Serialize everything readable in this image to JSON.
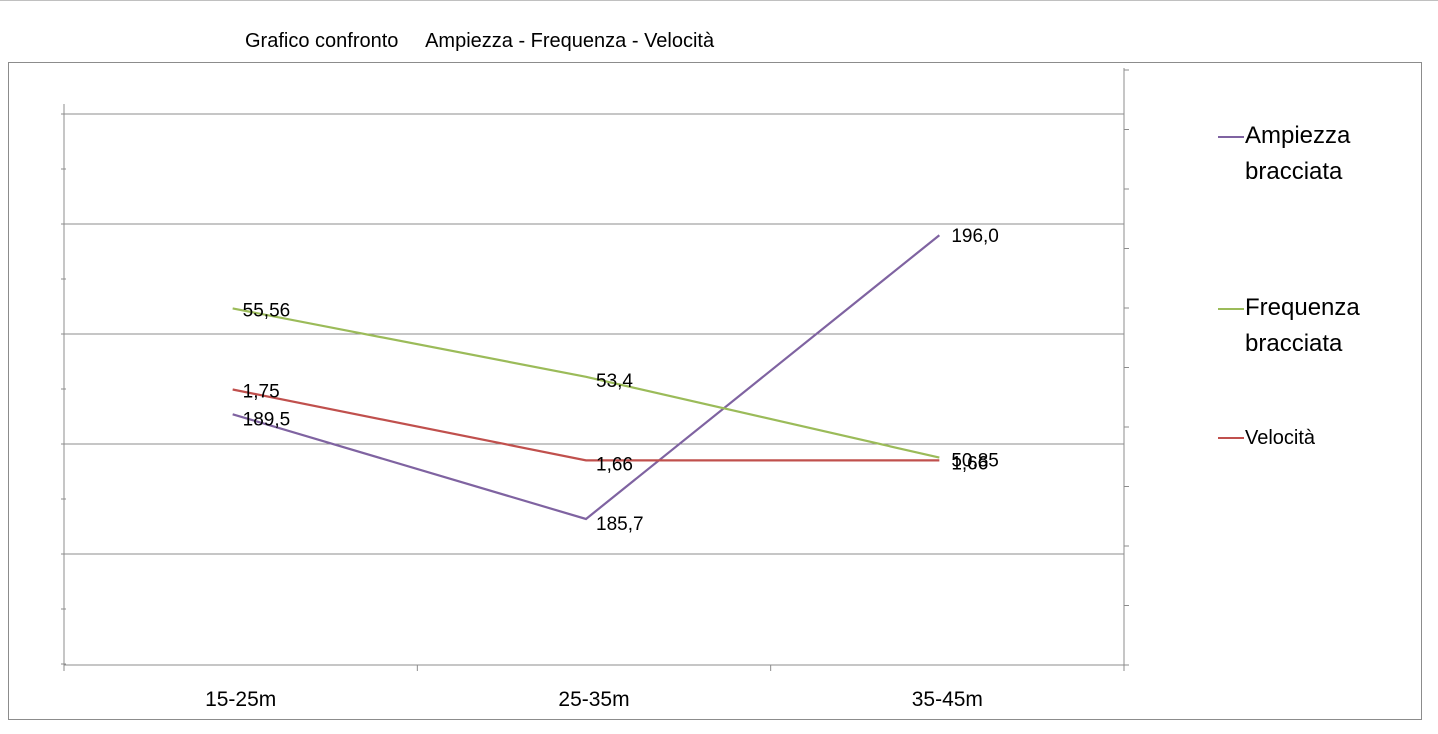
{
  "chart_data": {
    "type": "line",
    "title": "Grafico confronto     Ampiezza - Frequenza - Velocità",
    "categories": [
      "15-25m",
      "25-35m",
      "35-45m"
    ],
    "grid": true,
    "legend_position": "right",
    "series": [
      {
        "name": "Ampiezza bracciata",
        "name_lines": [
          "Ampiezza",
          "bracciata"
        ],
        "color": "#7f63a1",
        "values": [
          189.5,
          185.7,
          196.0
        ],
        "labels": [
          "189,5",
          "185,7",
          "196,0"
        ]
      },
      {
        "name": "Frequenza bracciata",
        "name_lines": [
          "Frequenza",
          "bracciata"
        ],
        "color": "#9bbb59",
        "values": [
          55.56,
          53.4,
          50.85
        ],
        "labels": [
          "55,56",
          "53,4",
          "50,85"
        ]
      },
      {
        "name": "Velocità",
        "name_lines": [
          "Velocità"
        ],
        "color": "#c0504d",
        "values": [
          1.75,
          1.66,
          1.66
        ],
        "labels": [
          "1,75",
          "1,66",
          "1,66"
        ]
      }
    ]
  }
}
